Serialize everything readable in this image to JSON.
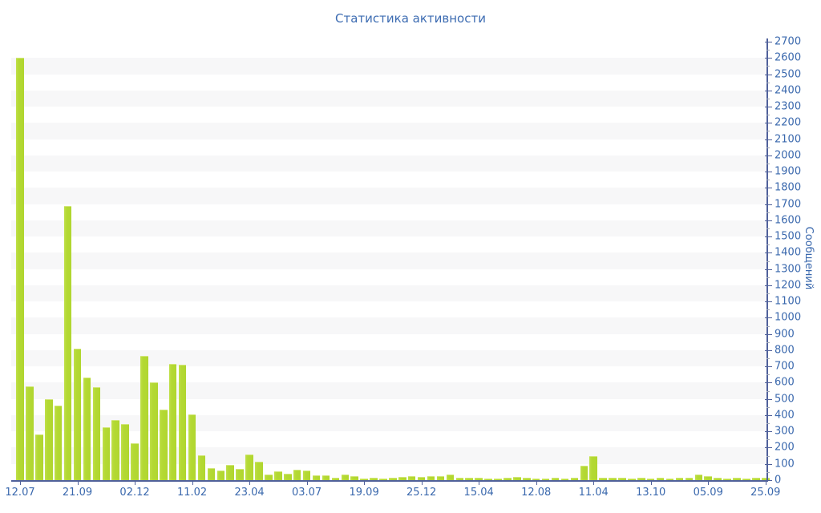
{
  "title": "Статистика активности",
  "colors": {
    "bar": "#b2d735",
    "bar_highlight": "#d2e67a",
    "axis_line": "#50619b",
    "text_blue": "#3a68ad",
    "title_blue": "#3d6cb2",
    "stripe_gray": "#f7f7f8",
    "minor_tick": "#9fa6b6",
    "background": "#ffffff"
  },
  "chart_data": {
    "type": "bar",
    "title": "Статистика активности",
    "xlabel": "",
    "ylabel": "Сообщений",
    "ylim": [
      0,
      2700
    ],
    "y_major_step": 100,
    "y_minor_step": 50,
    "legend": false,
    "background_bands": "alternating white / light-gray horizontal stripes, 100 units each",
    "bar_count": 79,
    "values": [
      2600,
      580,
      280,
      500,
      460,
      1690,
      810,
      630,
      575,
      325,
      370,
      345,
      225,
      765,
      600,
      435,
      715,
      710,
      405,
      155,
      75,
      60,
      95,
      70,
      160,
      115,
      35,
      55,
      40,
      65,
      58,
      28,
      31,
      16,
      36,
      25,
      12,
      15,
      10,
      13,
      20,
      23,
      20,
      23,
      26,
      33,
      16,
      16,
      16,
      10,
      12,
      15,
      20,
      15,
      10,
      12,
      15,
      12,
      15,
      90,
      150,
      15,
      13,
      15,
      12,
      13,
      12,
      13,
      12,
      14,
      13,
      33,
      25,
      13,
      12,
      13,
      12,
      13,
      15
    ],
    "x_ticks": [
      {
        "index": 0,
        "label": "12.07"
      },
      {
        "index": 6,
        "label": "21.09"
      },
      {
        "index": 12,
        "label": "02.12"
      },
      {
        "index": 18,
        "label": "11.02"
      },
      {
        "index": 24,
        "label": "23.04"
      },
      {
        "index": 30,
        "label": "03.07"
      },
      {
        "index": 36,
        "label": "19.09"
      },
      {
        "index": 42,
        "label": "25.12"
      },
      {
        "index": 48,
        "label": "15.04"
      },
      {
        "index": 54,
        "label": "12.08"
      },
      {
        "index": 60,
        "label": "11.04"
      },
      {
        "index": 66,
        "label": "13.10"
      },
      {
        "index": 72,
        "label": "05.09"
      },
      {
        "index": 78,
        "label": "25.09"
      }
    ]
  }
}
